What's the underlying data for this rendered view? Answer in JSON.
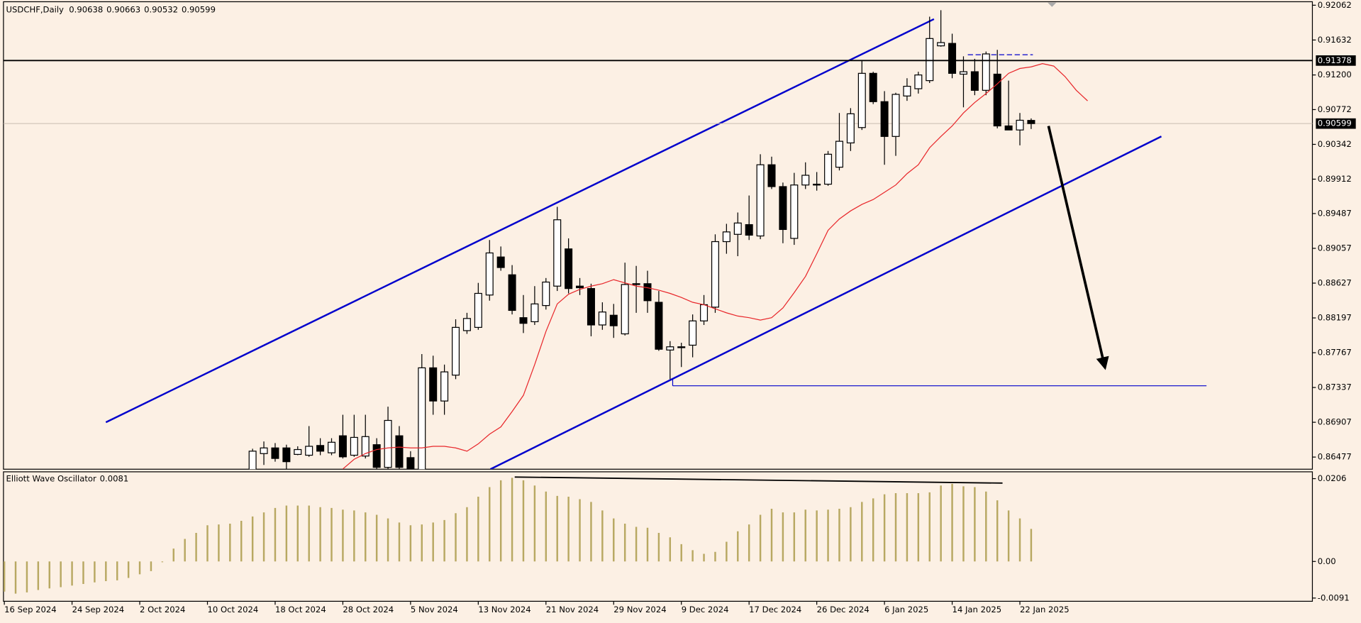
{
  "chart_data": [
    {
      "type": "candlestick",
      "title": "USDCHF,Daily",
      "categories": [
        "16 Sep 2024",
        null,
        null,
        null,
        null,
        null,
        "24 Sep 2024",
        null,
        null,
        null,
        null,
        null,
        "2 Oct 2024",
        null,
        null,
        null,
        null,
        null,
        "10 Oct 2024",
        null,
        null,
        null,
        null,
        null,
        "18 Oct 2024",
        null,
        null,
        null,
        null,
        null,
        "28 Oct 2024",
        null,
        null,
        null,
        null,
        null,
        "5 Nov 2024",
        null,
        null,
        null,
        null,
        null,
        "13 Nov 2024",
        null,
        null,
        null,
        null,
        null,
        "21 Nov 2024",
        null,
        null,
        null,
        null,
        null,
        "29 Nov 2024",
        null,
        null,
        null,
        null,
        null,
        "9 Dec 2024",
        null,
        null,
        null,
        null,
        null,
        "17 Dec 2024",
        null,
        null,
        null,
        null,
        null,
        "26 Dec 2024",
        null,
        null,
        null,
        null,
        null,
        "6 Jan 2025",
        null,
        null,
        null,
        null,
        null,
        "14 Jan 2025",
        null,
        null,
        null,
        null,
        null,
        "22 Jan 2025",
        null,
        null,
        null,
        null,
        null,
        null
      ],
      "open": [
        null,
        null,
        null,
        null,
        null,
        null,
        null,
        null,
        null,
        null,
        null,
        null,
        null,
        null,
        null,
        null,
        null,
        null,
        null,
        null,
        null,
        null,
        0.8628,
        0.8652,
        0.8659,
        0.8659,
        0.8651,
        0.865,
        0.8662,
        0.8653,
        0.8674,
        0.865,
        0.8649,
        0.8663,
        0.8635,
        0.8674,
        0.8647,
        0.8628,
        0.8758,
        0.8717,
        0.8749,
        0.8804,
        0.8808,
        0.8848,
        0.8895,
        0.8873,
        0.882,
        0.8815,
        0.8835,
        0.8859,
        0.8905,
        0.8859,
        0.8856,
        0.8811,
        0.8823,
        0.88,
        0.8861,
        0.8862,
        0.8839,
        0.878,
        0.8783,
        0.8786,
        0.8816,
        0.8833,
        0.8914,
        0.8923,
        0.8935,
        0.8921,
        0.9009,
        0.8982,
        0.8918,
        0.8984,
        0.8984,
        0.8985,
        0.9006,
        0.9036,
        0.9055,
        0.9122,
        0.9087,
        0.9044,
        0.9094,
        0.9103,
        0.9113,
        0.9156,
        0.9159,
        0.9121,
        0.9124,
        0.9101,
        0.9121,
        0.9057,
        0.9052,
        0.90638,
        null,
        null,
        null,
        null,
        null
      ],
      "high": [
        null,
        null,
        null,
        null,
        null,
        null,
        null,
        null,
        null,
        null,
        null,
        null,
        null,
        null,
        null,
        null,
        null,
        null,
        null,
        null,
        null,
        null,
        0.8658,
        0.8667,
        0.8665,
        0.8663,
        0.8661,
        0.8686,
        0.8671,
        0.8671,
        0.87,
        0.87,
        0.87,
        0.8671,
        0.871,
        0.8686,
        0.8655,
        0.8775,
        0.8773,
        0.8762,
        0.8818,
        0.8826,
        0.8863,
        0.8916,
        0.8908,
        0.8885,
        0.8848,
        0.8859,
        0.8869,
        0.8957,
        0.8918,
        0.8869,
        0.8862,
        0.8839,
        0.8837,
        0.8888,
        0.8884,
        0.8878,
        0.8853,
        0.8791,
        0.8789,
        0.8824,
        0.8848,
        0.8923,
        0.8936,
        0.895,
        0.8971,
        0.9022,
        0.9019,
        0.8987,
        0.8999,
        0.9012,
        0.9,
        0.9026,
        0.9073,
        0.9079,
        0.9138,
        0.9124,
        0.91,
        0.9098,
        0.9116,
        0.9124,
        0.9192,
        0.92,
        0.9171,
        0.9143,
        0.914,
        0.9149,
        0.9151,
        0.9113,
        0.9073,
        0.90663,
        null,
        null,
        null,
        null,
        null
      ],
      "low": [
        null,
        null,
        null,
        null,
        null,
        null,
        null,
        null,
        null,
        null,
        null,
        null,
        null,
        null,
        null,
        null,
        null,
        null,
        null,
        null,
        null,
        null,
        0.8625,
        0.8638,
        0.8642,
        0.8633,
        0.865,
        0.8648,
        0.865,
        0.865,
        0.8646,
        0.8648,
        0.8646,
        0.8633,
        0.8633,
        0.8633,
        0.8625,
        0.8625,
        0.87,
        0.87,
        0.8744,
        0.88,
        0.8805,
        0.8841,
        0.8878,
        0.8824,
        0.8801,
        0.8811,
        0.883,
        0.8853,
        0.885,
        0.8848,
        0.8797,
        0.8805,
        0.8795,
        0.8798,
        0.8826,
        0.8826,
        0.8779,
        0.8744,
        0.8759,
        0.8771,
        0.8811,
        0.8826,
        0.8899,
        0.8896,
        0.8916,
        0.8917,
        0.8979,
        0.8912,
        0.891,
        0.8979,
        0.8977,
        0.8983,
        0.9002,
        0.9026,
        0.9052,
        0.9084,
        0.9009,
        0.902,
        0.9088,
        0.9097,
        0.911,
        0.9155,
        0.9116,
        0.908,
        0.9095,
        0.9095,
        0.9054,
        0.9052,
        0.9033,
        0.90532,
        null,
        null,
        null,
        null,
        null
      ],
      "close": [
        null,
        null,
        null,
        null,
        null,
        null,
        null,
        null,
        null,
        null,
        null,
        null,
        null,
        null,
        null,
        null,
        null,
        null,
        null,
        null,
        null,
        null,
        0.8655,
        0.8659,
        0.8646,
        0.8642,
        0.8657,
        0.8661,
        0.8655,
        0.8666,
        0.8648,
        0.8672,
        0.8673,
        0.8635,
        0.8693,
        0.8635,
        0.8628,
        0.8758,
        0.8717,
        0.8753,
        0.8808,
        0.8819,
        0.885,
        0.89,
        0.8882,
        0.8829,
        0.8813,
        0.8837,
        0.8864,
        0.8941,
        0.8856,
        0.8857,
        0.8811,
        0.8827,
        0.881,
        0.8861,
        0.8862,
        0.8841,
        0.8781,
        0.8784,
        0.8784,
        0.8816,
        0.8836,
        0.8914,
        0.8926,
        0.8937,
        0.8922,
        0.9009,
        0.8982,
        0.8929,
        0.8984,
        0.8996,
        0.8985,
        0.9022,
        0.9038,
        0.9072,
        0.9122,
        0.9087,
        0.9044,
        0.9096,
        0.9106,
        0.912,
        0.9165,
        0.916,
        0.9122,
        0.9124,
        0.9101,
        0.9146,
        0.9057,
        0.9052,
        0.9064,
        0.90599,
        null,
        null,
        null,
        null,
        null
      ],
      "line_color": "#e8262a",
      "line_values": [
        null,
        null,
        null,
        null,
        null,
        null,
        null,
        null,
        null,
        null,
        null,
        null,
        null,
        null,
        null,
        null,
        null,
        null,
        null,
        null,
        null,
        null,
        null,
        null,
        null,
        null,
        null,
        null,
        null,
        null,
        0.8633,
        0.8645,
        0.8652,
        0.8657,
        0.8659,
        0.866,
        0.8659,
        0.8659,
        0.8661,
        0.8661,
        0.8659,
        0.8655,
        0.8664,
        0.8676,
        0.8685,
        0.8704,
        0.8724,
        0.8762,
        0.8803,
        0.8837,
        0.8849,
        0.8855,
        0.8859,
        0.8862,
        0.8867,
        0.8863,
        0.8859,
        0.8857,
        0.8854,
        0.885,
        0.8845,
        0.8839,
        0.8836,
        0.8831,
        0.8826,
        0.8822,
        0.882,
        0.8817,
        0.882,
        0.8832,
        0.8851,
        0.8871,
        0.8899,
        0.8928,
        0.8942,
        0.8952,
        0.896,
        0.8966,
        0.8975,
        0.8984,
        0.8998,
        0.9009,
        0.903,
        0.9044,
        0.9057,
        0.9073,
        0.9086,
        0.9097,
        0.9109,
        0.9122,
        0.9128,
        0.913,
        0.9134,
        0.9131,
        0.9118,
        0.9101,
        0.9088
      ],
      "ylim": [
        0.86327,
        0.92105
      ],
      "yticks": [
        0.92062,
        0.91632,
        {
          "value": 0.912,
          "label": "0.91200"
        },
        0.90772,
        0.90342,
        0.89912,
        0.89487,
        0.89057,
        0.88627,
        0.88197,
        0.87767,
        0.87337,
        0.86907,
        0.86477
      ],
      "grid": false,
      "hline": 0.91378,
      "last_price": 0.90599
    },
    {
      "type": "bar",
      "title": "Elliott Wave Oscillator",
      "current_value": 0.0081,
      "color": "#b8a862",
      "values": [
        -0.0075,
        -0.008,
        -0.0077,
        -0.0071,
        -0.0067,
        -0.0064,
        -0.006,
        -0.0056,
        -0.0052,
        -0.0049,
        -0.0047,
        -0.0041,
        -0.0032,
        -0.0024,
        -0.0002,
        0.0032,
        0.0056,
        0.0071,
        0.009,
        0.0092,
        0.0094,
        0.0101,
        0.0112,
        0.0122,
        0.0133,
        0.0139,
        0.0139,
        0.0139,
        0.0135,
        0.0133,
        0.0129,
        0.0127,
        0.0122,
        0.0116,
        0.0107,
        0.0097,
        0.009,
        0.0092,
        0.0097,
        0.0103,
        0.012,
        0.0135,
        0.0161,
        0.0185,
        0.0202,
        0.0208,
        0.0202,
        0.0189,
        0.0174,
        0.0163,
        0.0161,
        0.0155,
        0.0148,
        0.0127,
        0.0107,
        0.0094,
        0.0086,
        0.0084,
        0.0071,
        0.006,
        0.0043,
        0.0028,
        0.0019,
        0.0024,
        0.0049,
        0.0075,
        0.0092,
        0.0116,
        0.0131,
        0.0122,
        0.0122,
        0.0129,
        0.0127,
        0.0129,
        0.0131,
        0.0135,
        0.0148,
        0.0157,
        0.0167,
        0.017,
        0.017,
        0.017,
        0.0172,
        0.0189,
        0.0193,
        0.0187,
        0.0185,
        0.0174,
        0.0152,
        0.0127,
        0.0107,
        0.0081,
        null,
        null,
        null,
        null,
        null
      ],
      "ylim": [
        -0.0099,
        0.0223
      ],
      "yticks": [
        0.0206,
        {
          "value": 0,
          "label": "0.00"
        },
        -0.0091
      ]
    }
  ]
}
